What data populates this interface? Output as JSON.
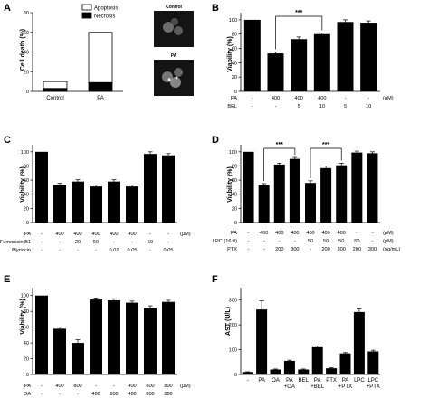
{
  "chart_data": [
    {
      "panel": "A",
      "type": "bar",
      "stacked": true,
      "ylabel": "Cell death (%)",
      "ylim": [
        0,
        80
      ],
      "yticks": [
        0,
        20,
        40,
        60,
        80
      ],
      "categories": [
        "Control",
        "PA"
      ],
      "series": [
        {
          "name": "Necrosis",
          "values": [
            3,
            9
          ],
          "color": "#000000"
        },
        {
          "name": "Apoptosis",
          "values": [
            7,
            51
          ],
          "color": "#ffffff"
        }
      ],
      "legend": "top-right",
      "image_labels": [
        "Control",
        "PA"
      ]
    },
    {
      "panel": "B",
      "type": "bar",
      "ylabel": "Viability (%)",
      "ylim": [
        0,
        110
      ],
      "yticks": [
        0,
        20,
        40,
        60,
        80,
        100
      ],
      "values": [
        100,
        53,
        73,
        80,
        97,
        96
      ],
      "errors": [
        0,
        2,
        3,
        1.5,
        3,
        2.5
      ],
      "rows": [
        {
          "label": "PA",
          "unit": "(μM)",
          "cells": [
            "-",
            "400",
            "400",
            "400",
            "-",
            "-"
          ]
        },
        {
          "label": "BEL",
          "unit": "",
          "cells": [
            "-",
            "-",
            "5",
            "10",
            "5",
            "10"
          ]
        }
      ],
      "significance": [
        {
          "from": 1,
          "to": 3,
          "label": "***"
        }
      ]
    },
    {
      "panel": "C",
      "type": "bar",
      "ylabel": "Viability (%)",
      "ylim": [
        0,
        110
      ],
      "yticks": [
        0,
        20,
        40,
        60,
        80,
        100
      ],
      "values": [
        100,
        53,
        58,
        51,
        58,
        51,
        97,
        95
      ],
      "errors": [
        0,
        2.5,
        2.5,
        2,
        2.5,
        2,
        3,
        2.5
      ],
      "rows": [
        {
          "label": "PA",
          "unit": "(μM)",
          "cells": [
            "-",
            "400",
            "400",
            "400",
            "400",
            "400",
            "-",
            "-"
          ]
        },
        {
          "label": "Fumonisin B1",
          "unit": "",
          "cells": [
            "-",
            "-",
            "20",
            "50",
            "-",
            "-",
            "50",
            "-"
          ]
        },
        {
          "label": "Myriocin",
          "unit": "",
          "cells": [
            "-",
            "-",
            "-",
            "-",
            "0.02",
            "0.05",
            "-",
            "0.05"
          ]
        }
      ],
      "significance": []
    },
    {
      "panel": "D",
      "type": "bar",
      "ylabel": "Viability (%)",
      "ylim": [
        0,
        110
      ],
      "yticks": [
        0,
        20,
        40,
        60,
        80,
        100
      ],
      "values": [
        100,
        53,
        82,
        90,
        56,
        77,
        81,
        99,
        98
      ],
      "errors": [
        0,
        2,
        2,
        2,
        3,
        3,
        3,
        2,
        2
      ],
      "rows": [
        {
          "label": "PA",
          "unit": "(μM)",
          "cells": [
            "-",
            "400",
            "400",
            "400",
            "400",
            "400",
            "400",
            "-",
            "-"
          ]
        },
        {
          "label": "LPC (16:0)",
          "unit": "(μM)",
          "cells": [
            "-",
            "-",
            "-",
            "-",
            "50",
            "50",
            "50",
            "50",
            "-"
          ]
        },
        {
          "label": "PTX",
          "unit": "(ng/mL)",
          "cells": [
            "-",
            "-",
            "200",
            "300",
            "-",
            "200",
            "300",
            "200",
            "300"
          ]
        }
      ],
      "significance": [
        {
          "from": 1,
          "to": 3,
          "label": "***"
        },
        {
          "from": 4,
          "to": 6,
          "label": "***"
        }
      ]
    },
    {
      "panel": "E",
      "type": "bar",
      "ylabel": "Viability (%)",
      "ylim": [
        0,
        110
      ],
      "yticks": [
        0,
        20,
        40,
        60,
        80,
        100
      ],
      "values": [
        100,
        58,
        40,
        95,
        94,
        91,
        84,
        92
      ],
      "errors": [
        0,
        2,
        4,
        2,
        2,
        2,
        3,
        2
      ],
      "rows": [
        {
          "label": "PA",
          "unit": "(μM)",
          "cells": [
            "-",
            "400",
            "800",
            "-",
            "-",
            "400",
            "800",
            "800"
          ]
        },
        {
          "label": "OA",
          "unit": "",
          "cells": [
            "-",
            "-",
            "-",
            "400",
            "800",
            "400",
            "800",
            "800"
          ]
        }
      ],
      "significance": []
    },
    {
      "panel": "F",
      "type": "bar",
      "ylabel": "AST (U/L)",
      "ylim": [
        0,
        350
      ],
      "yticks": [
        0,
        100,
        200,
        300
      ],
      "categories": [
        "-",
        "PA",
        "OA",
        "PA\n+OA",
        "BEL",
        "PA\n+BEL",
        "PTX",
        "PA\n+PTX",
        "LPC",
        "LPC\n+PTX"
      ],
      "values": [
        10,
        262,
        20,
        55,
        20,
        110,
        25,
        85,
        252,
        93
      ],
      "errors": [
        1,
        35,
        2,
        3,
        2,
        5,
        2,
        3,
        12,
        5
      ],
      "rows": [],
      "significance": []
    }
  ]
}
